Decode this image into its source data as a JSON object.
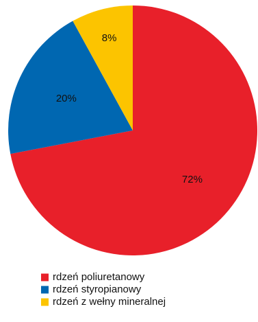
{
  "chart_data": {
    "type": "pie",
    "title": "",
    "slices": [
      {
        "label": "rdzeń poliuretanowy",
        "value": 72,
        "display": "72%",
        "color": "#e8202a"
      },
      {
        "label": "rdzeń styropianowy",
        "value": 20,
        "display": "20%",
        "color": "#0067b1"
      },
      {
        "label": "rdzeń z wełny mineralnej",
        "value": 8,
        "display": "8%",
        "color": "#fcc400"
      }
    ],
    "legend_position": "bottom-center",
    "start_angle_deg": 0,
    "direction": "clockwise"
  }
}
